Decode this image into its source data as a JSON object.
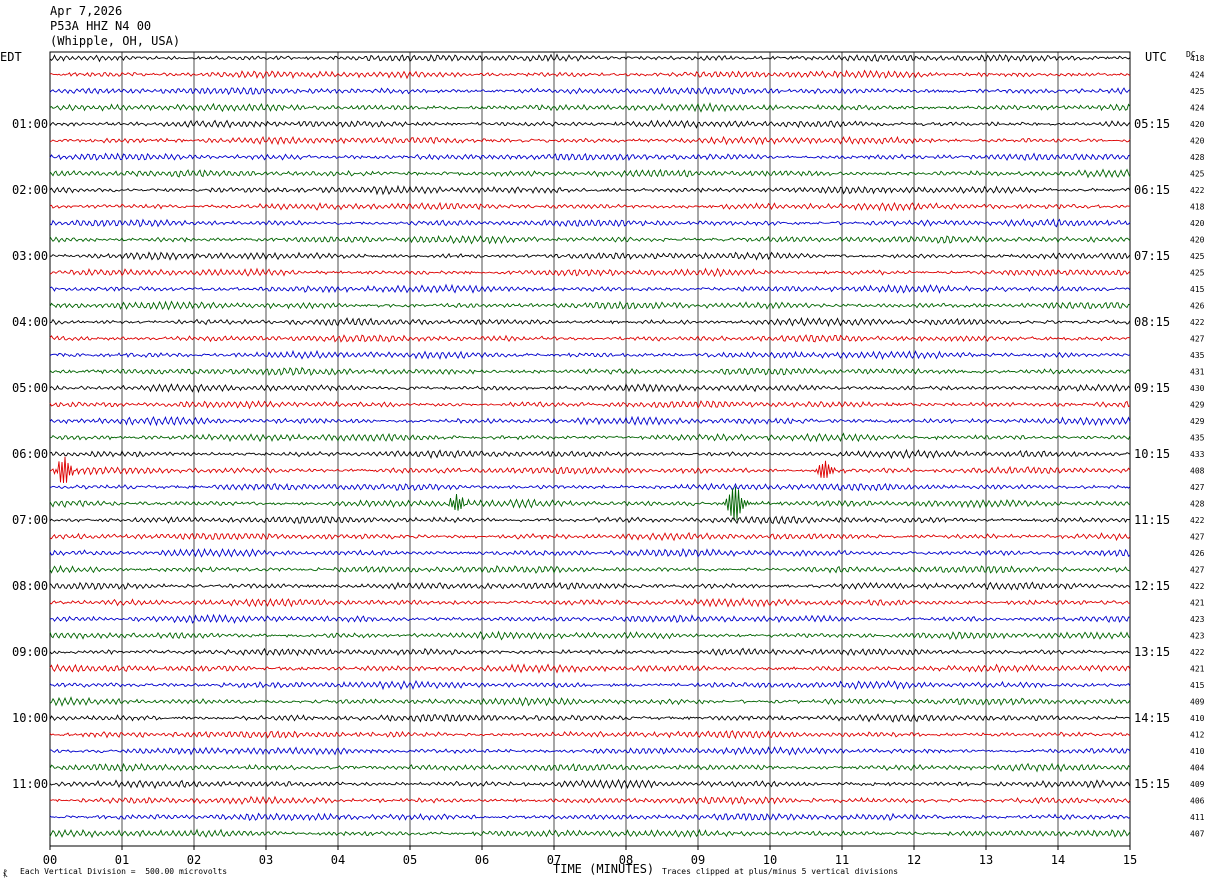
{
  "header": {
    "date": "Apr 7,2026",
    "station": "P53A HHZ N4 00",
    "location": "(Whipple, OH, USA)",
    "left_zone": "EDT",
    "right_zone": "UTC",
    "dc_label": "DC"
  },
  "footer": {
    "scale_note": "Each Vertical Division =  500.00 microvolts",
    "clip_note": "Traces clipped at plus/minus 5 vertical divisions",
    "corner_mark": "⳩"
  },
  "chart_data": {
    "type": "helicorder",
    "xlabel": "TIME (MINUTES)",
    "x_ticks": [
      "00",
      "01",
      "02",
      "03",
      "04",
      "05",
      "06",
      "07",
      "08",
      "09",
      "10",
      "11",
      "12",
      "13",
      "14",
      "15"
    ],
    "xlim": [
      0,
      15
    ],
    "trace_colors": [
      "#000000",
      "#dd0000",
      "#0000cc",
      "#006400"
    ],
    "left_hour_labels": [
      "01:00",
      "02:00",
      "03:00",
      "04:00",
      "05:00",
      "06:00",
      "07:00",
      "08:00",
      "09:00",
      "10:00",
      "11:00"
    ],
    "right_hour_labels": [
      "05:15",
      "06:15",
      "07:15",
      "08:15",
      "09:15",
      "10:15",
      "11:15",
      "12:15",
      "13:15",
      "14:15",
      "15:15"
    ],
    "dc_offsets": [
      418,
      424,
      425,
      424,
      420,
      420,
      428,
      425,
      422,
      418,
      420,
      420,
      425,
      425,
      415,
      426,
      422,
      427,
      435,
      431,
      430,
      429,
      429,
      435,
      433,
      408,
      427,
      428,
      422,
      427,
      426,
      427,
      422,
      421,
      423,
      423,
      422,
      421,
      415,
      409,
      410,
      412,
      410,
      404,
      409,
      406,
      411,
      407
    ],
    "events": [
      {
        "row": 25,
        "minute": 0.18,
        "amplitude": 2.5
      },
      {
        "row": 27,
        "minute": 5.63,
        "amplitude": 3.3
      },
      {
        "row": 27,
        "minute": 9.5,
        "amplitude": 4.0
      },
      {
        "row": 25,
        "minute": 10.75,
        "amplitude": 2.8
      }
    ]
  }
}
